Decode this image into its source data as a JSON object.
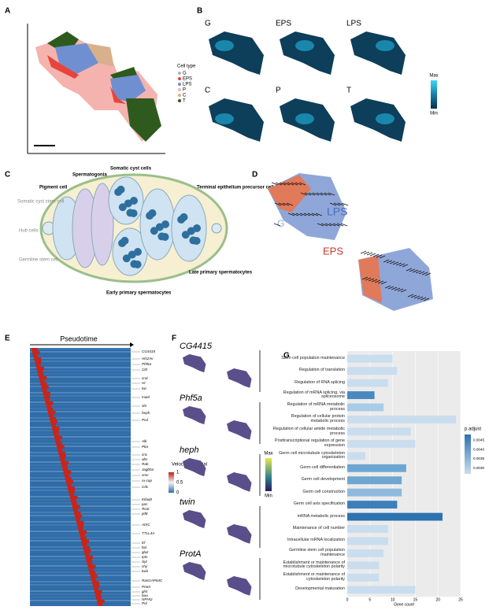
{
  "panels": {
    "A": {
      "letter": "A",
      "legend_title": "Cell type",
      "types": [
        {
          "name": "G",
          "color": "#b0b0b0"
        },
        {
          "name": "EPS",
          "color": "#e8443a"
        },
        {
          "name": "LPS",
          "color": "#6f8fd0"
        },
        {
          "name": "P",
          "color": "#f4b3ae"
        },
        {
          "name": "C",
          "color": "#d9b08c"
        },
        {
          "name": "T",
          "color": "#2e5a1e"
        }
      ]
    },
    "B": {
      "letter": "B",
      "maps": [
        "G",
        "EPS",
        "LPS",
        "C",
        "P",
        "T"
      ],
      "max": "Max",
      "min": "Min"
    },
    "C": {
      "letter": "C",
      "labels": [
        "Pigment cell",
        "Somatic cyst stem cell",
        "Hub cells",
        "Germline stem cell",
        "Spermatogonia",
        "Somatic cyst cells",
        "Terminal epithelium precursor cells",
        "Late primary spermatocytes",
        "Early primary spermatocytes"
      ]
    },
    "D": {
      "letter": "D",
      "labels": [
        "LPS",
        "G",
        "EPS"
      ]
    },
    "E": {
      "letter": "E",
      "title": "Pseudotime",
      "legend_title": "Velocity potential",
      "legend_ticks": [
        1,
        0.5,
        0
      ],
      "genes": [
        "CG4415",
        "His2Av",
        "Phf5a",
        "Cbl",
        "crol",
        "Hr",
        "twi",
        "mael",
        "sbr",
        "heph",
        "Pcd",
        "Alk",
        "Pka",
        "cnc",
        "abs",
        "Rab",
        "Jagbha",
        "cmv",
        "ru-cap",
        "Cdc",
        "Kifaab",
        "pas",
        "Rcal",
        "jaf8",
        "AtXC",
        "TTLL4A",
        "Ef",
        "bol",
        "gluz",
        "Ipts",
        "Syt",
        "chy",
        "twin",
        "RasGAP64C",
        "ProtA",
        "glsl",
        "bua",
        "NPHI2",
        "Pol"
      ]
    },
    "F": {
      "letter": "F",
      "genes": [
        "CG4415",
        "Phf5a",
        "heph",
        "twin",
        "ProtA"
      ],
      "max": "Max",
      "min": "Min"
    },
    "G": {
      "letter": "G"
    }
  },
  "chart_data": {
    "type": "hbar",
    "x_label": "Gene count",
    "legend_title": "p.adjust",
    "categories": [
      "Stem cell population maintenance",
      "Regulation of translation",
      "Regulation of RNA splicing",
      "Regulation of mRNA splicing, via spliceosome",
      "Regulation of mRNA metabolic process",
      "Regulation of cellular protein metabolic process",
      "Regulation of cellular amide metabolic process",
      "Posttranscriptional regulation of gene expression",
      "Germ cell microtubule cytoskeleton organization",
      "Germ cell differentiation",
      "Germ cell development",
      "Germ cell construction",
      "Germ cell axis specification",
      "mRNA metabolic process",
      "Maintenance of cell number",
      "Intracellular mRNA localization",
      "Germline stem cell population maintenance",
      "Establishment or maintenance of microtubule cytoskeleton polarity",
      "Establishment or maintenance of cytoskeleton polarity",
      "Developmental maturation"
    ],
    "values": [
      10,
      11,
      9,
      6,
      8,
      24,
      14,
      15,
      4,
      13,
      12,
      12,
      11,
      21,
      9,
      9,
      8,
      7,
      7,
      15
    ],
    "colors": [
      "#c9ddef",
      "#c9ddef",
      "#c9ddef",
      "#4a88c0",
      "#a9cbe8",
      "#c9ddef",
      "#c9ddef",
      "#c9ddef",
      "#c9ddef",
      "#6ea6d2",
      "#6ea6d2",
      "#8fb9de",
      "#3d7fba",
      "#2e72b0",
      "#c9ddef",
      "#c9ddef",
      "#c9ddef",
      "#c9ddef",
      "#c9ddef",
      "#c9ddef"
    ],
    "xlim": [
      0,
      25
    ],
    "xticks": [
      0,
      5,
      10,
      15,
      20,
      25
    ],
    "grid": true,
    "clim": [
      0.0027,
      0.0048
    ],
    "cticks": [
      0.0045,
      {
        "value": 0.004,
        "label": "0.0040"
      },
      0.0035,
      {
        "value": 0.003,
        "label": "0.0030"
      }
    ]
  }
}
